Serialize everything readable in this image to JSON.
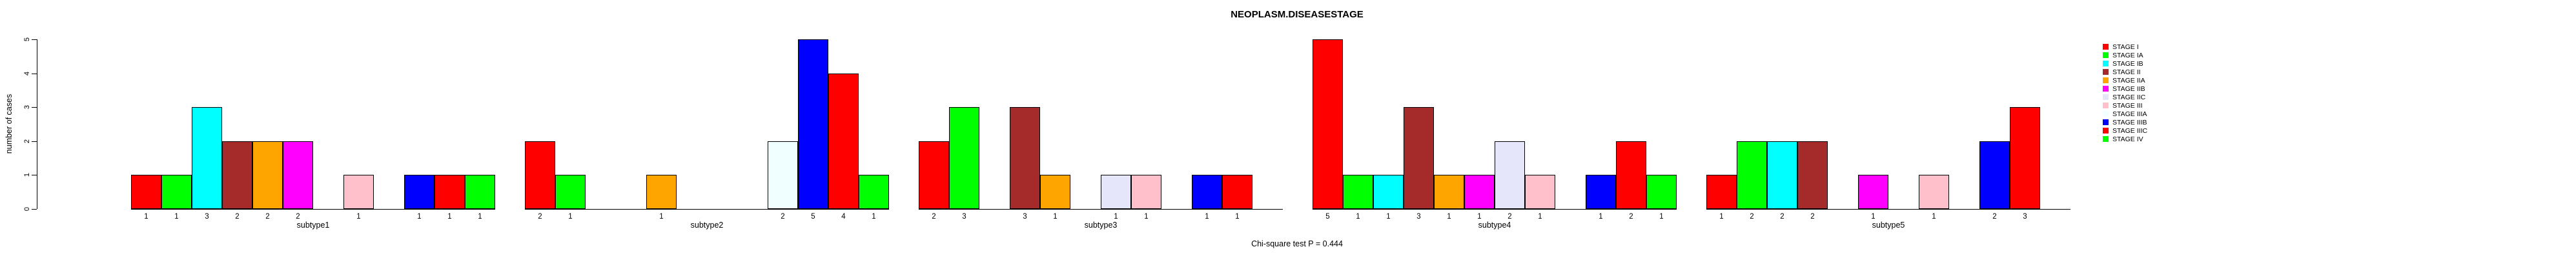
{
  "title": "NEOPLASM.DISEASESTAGE",
  "annotation": "Chi-square test P = 0.444",
  "y_axis": {
    "label": "number of cases",
    "ticks": [
      "0",
      "1",
      "2",
      "3",
      "4",
      "5"
    ]
  },
  "chart_data": {
    "type": "bar",
    "title": "NEOPLASM.DISEASESTAGE",
    "xlabel": "",
    "ylabel": "number of cases",
    "ylim": [
      0,
      5
    ],
    "grid": false,
    "legend_position": "right",
    "annotation": "Chi-square test P = 0.444",
    "bar_value_labels_shown": true,
    "categories": [
      "subtype1",
      "subtype2",
      "subtype3",
      "subtype4",
      "subtype5"
    ],
    "series": [
      {
        "name": "STAGE I",
        "color": "#FF0000",
        "values": [
          1,
          2,
          2,
          5,
          1
        ]
      },
      {
        "name": "STAGE IA",
        "color": "#00FF00",
        "values": [
          1,
          1,
          3,
          1,
          2
        ]
      },
      {
        "name": "STAGE IB",
        "color": "#00FFFF",
        "values": [
          3,
          0,
          0,
          1,
          2
        ]
      },
      {
        "name": "STAGE II",
        "color": "#A52A2A",
        "values": [
          2,
          0,
          3,
          3,
          2
        ]
      },
      {
        "name": "STAGE IIA",
        "color": "#FFA500",
        "values": [
          2,
          1,
          1,
          1,
          0
        ]
      },
      {
        "name": "STAGE IIB",
        "color": "#FF00FF",
        "values": [
          2,
          0,
          0,
          1,
          1
        ]
      },
      {
        "name": "STAGE IIC",
        "color": "#E6E6FA",
        "values": [
          0,
          0,
          1,
          2,
          0
        ]
      },
      {
        "name": "STAGE III",
        "color": "#FFC0CB",
        "values": [
          1,
          0,
          1,
          1,
          1
        ]
      },
      {
        "name": "STAGE IIIA",
        "color": "#F0FFFF",
        "values": [
          0,
          2,
          0,
          0,
          0
        ]
      },
      {
        "name": "STAGE IIIB",
        "color": "#0000FF",
        "values": [
          1,
          5,
          1,
          1,
          2
        ]
      },
      {
        "name": "STAGE IIIC",
        "color": "#FF0000",
        "values": [
          1,
          4,
          1,
          2,
          3
        ]
      },
      {
        "name": "STAGE IV",
        "color": "#00FF00",
        "values": [
          1,
          1,
          0,
          1,
          0
        ]
      }
    ]
  }
}
